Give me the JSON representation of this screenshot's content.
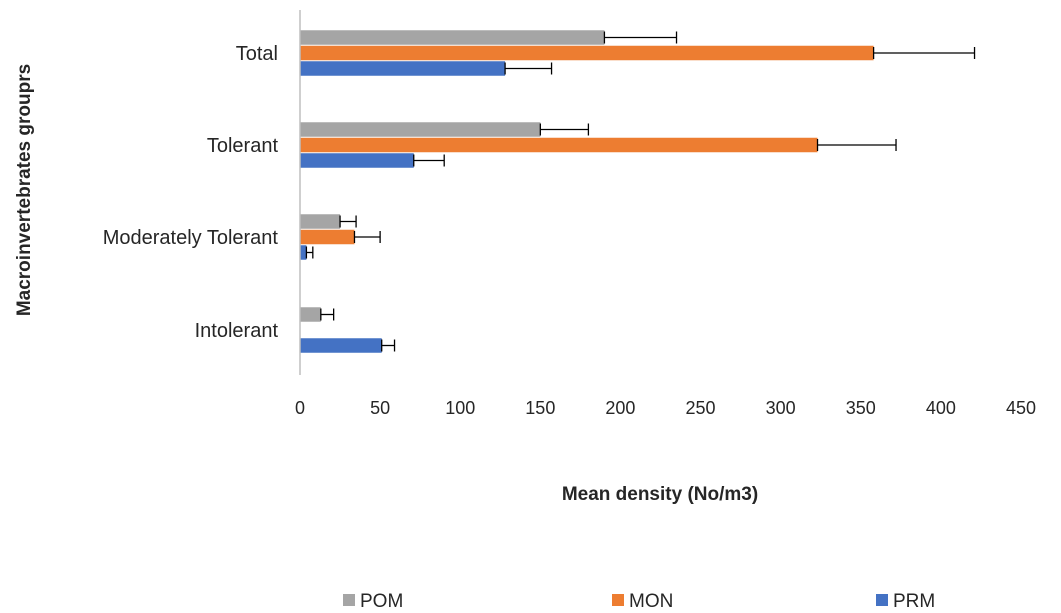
{
  "chart_data": {
    "type": "bar",
    "orientation": "horizontal",
    "title": "",
    "xlabel": "Mean density (No/m3)",
    "ylabel": "Macroinvertebrates grouprs",
    "xlim": [
      0,
      450
    ],
    "xticks": [
      0,
      50,
      100,
      150,
      200,
      250,
      300,
      350,
      400,
      450
    ],
    "grid": false,
    "legend_position": "bottom",
    "categories": [
      "Total",
      "Tolerant",
      "Moderately Tolerant",
      "Intolerant"
    ],
    "series": [
      {
        "name": "POM",
        "color": "#a5a5a5",
        "values": [
          190,
          150,
          25,
          13
        ],
        "errors": [
          45,
          30,
          10,
          8
        ]
      },
      {
        "name": "MON",
        "color": "#ed7d31",
        "values": [
          358,
          323,
          34,
          0
        ],
        "errors": [
          63,
          49,
          16,
          0
        ]
      },
      {
        "name": "PRM",
        "color": "#4472c4",
        "values": [
          128,
          71,
          4,
          51
        ],
        "errors": [
          29,
          19,
          4,
          8
        ]
      }
    ]
  }
}
